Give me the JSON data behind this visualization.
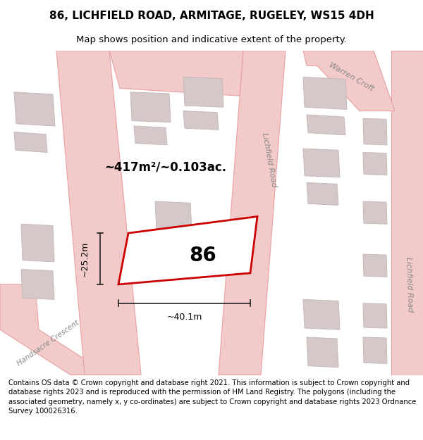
{
  "title_line1": "86, LICHFIELD ROAD, ARMITAGE, RUGELEY, WS15 4DH",
  "title_line2": "Map shows position and indicative extent of the property.",
  "footer_text": "Contains OS data © Crown copyright and database right 2021. This information is subject to Crown copyright and database rights 2023 and is reproduced with the permission of HM Land Registry. The polygons (including the associated geometry, namely x, y co-ordinates) are subject to Crown copyright and database rights 2023 Ordnance Survey 100026316.",
  "area_label": "~417m²/~0.103ac.",
  "width_label": "~40.1m",
  "height_label": "~25.2m",
  "property_number": "86",
  "map_bg": "#f0eded",
  "road_stroke": "#e8a0a0",
  "road_fill": "#f2caca",
  "building_edge": "#c8b8b8",
  "building_fill": "#d4c8c8",
  "property_edge_color": "#cc0000",
  "property_fill": "#ffffff",
  "dim_color": "#222222",
  "road_label_color": "#888888",
  "title_fontsize": 11,
  "subtitle_fontsize": 9.5,
  "footer_fontsize": 7.2,
  "label_fontsize": 12,
  "number_fontsize": 20,
  "dim_fontsize": 9
}
